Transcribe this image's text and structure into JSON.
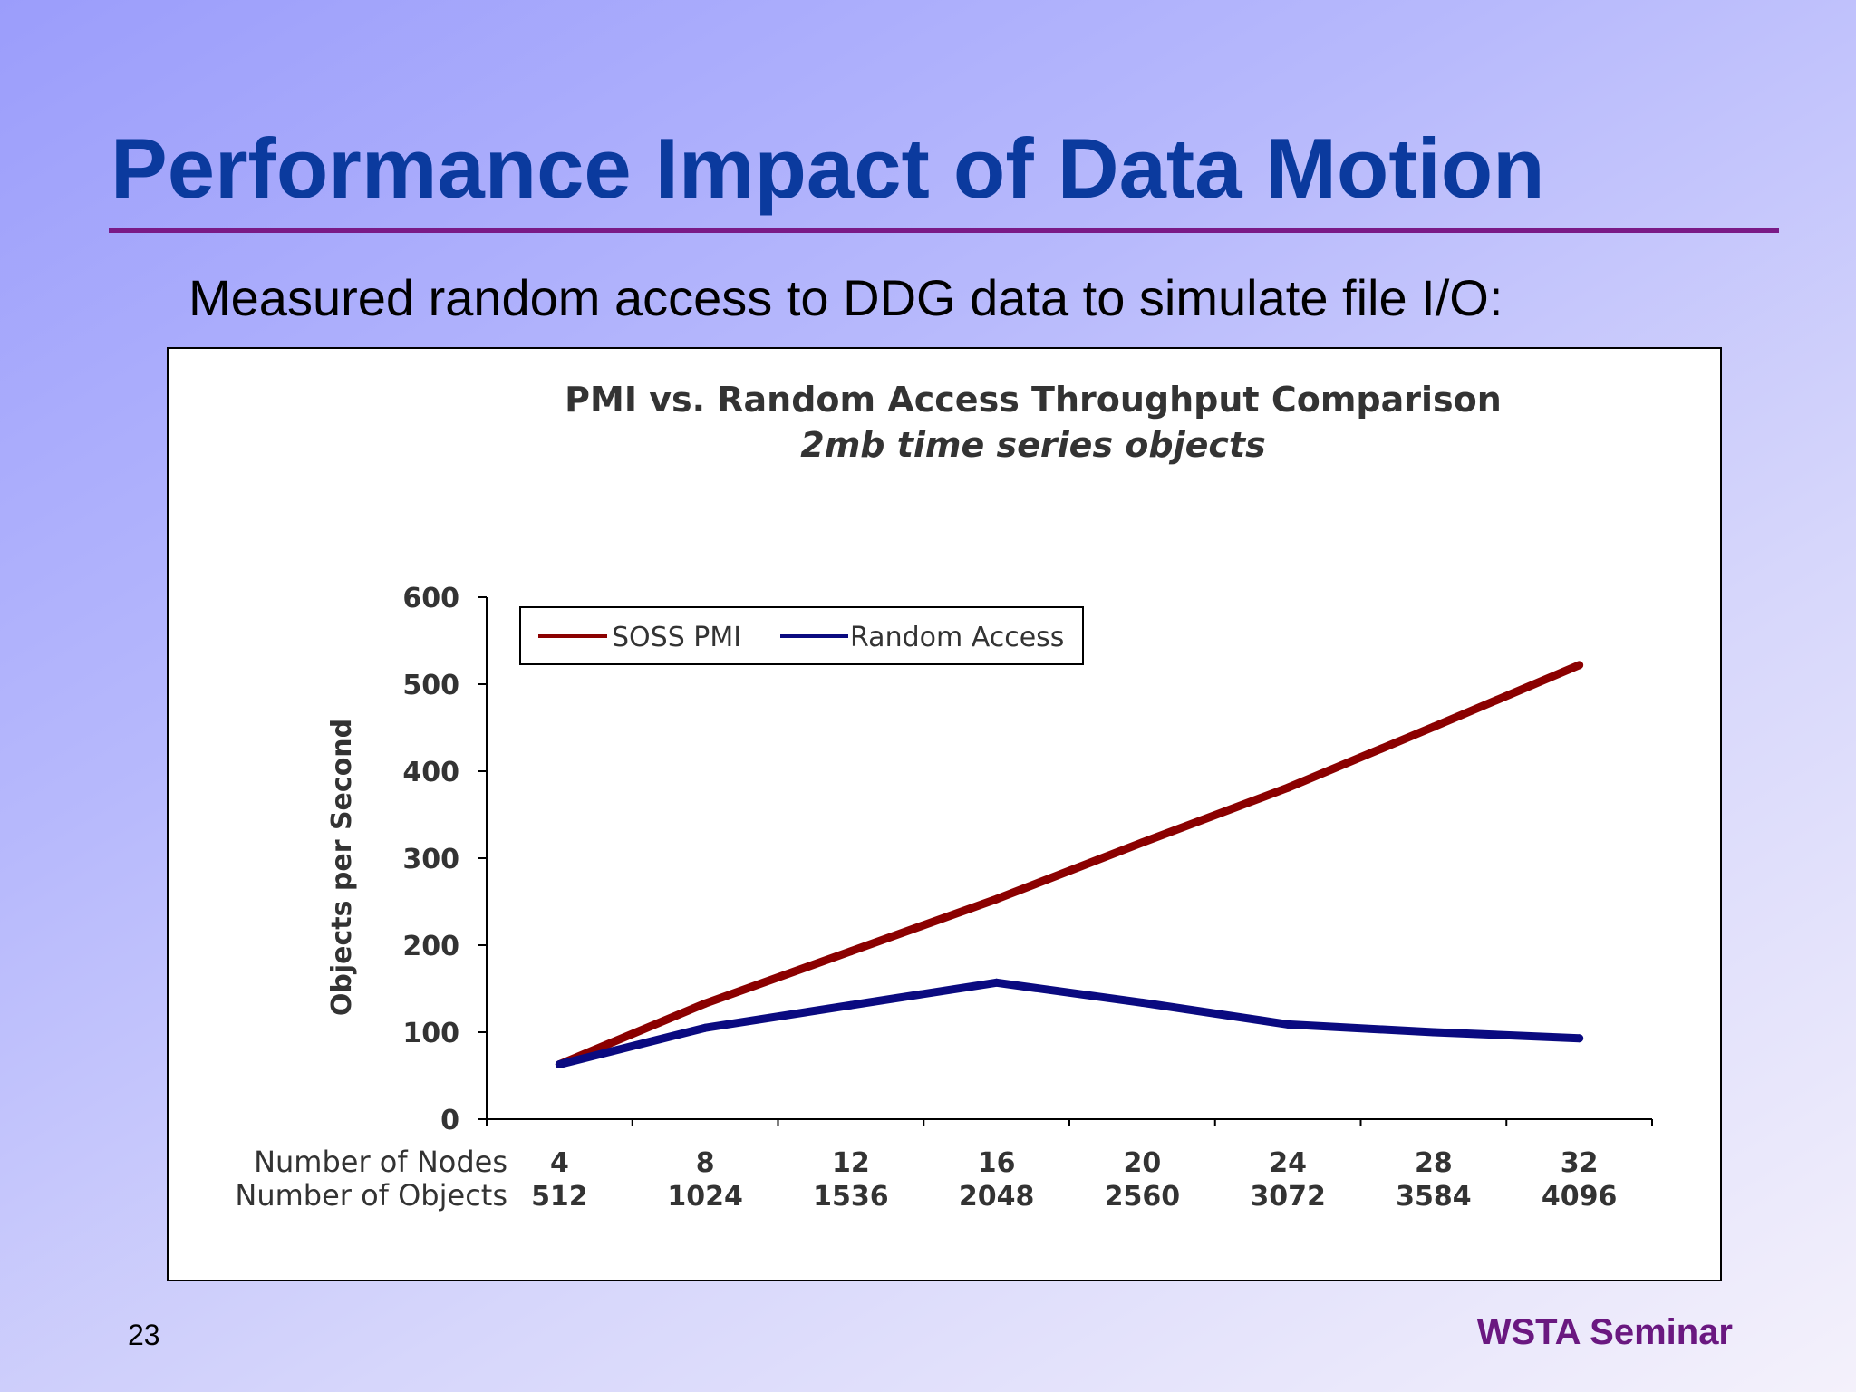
{
  "slide": {
    "title": "Performance Impact of Data Motion",
    "subtitle": "Measured random access to DDG data to simulate file I/O:",
    "number": "23",
    "footer": "WSTA Seminar"
  },
  "colors": {
    "title": "#0b3a9e",
    "rule": "#7a1a86",
    "footer": "#6a1880",
    "series_soss": "#8b0000",
    "series_random": "#0a0a80"
  },
  "chart_data": {
    "type": "line",
    "title": "PMI vs. Random Access Throughput Comparison",
    "subtitle": "2mb time series objects",
    "ylabel": "Objects per Second",
    "ylim": [
      0,
      600
    ],
    "yticks": [
      0,
      100,
      200,
      300,
      400,
      500,
      600
    ],
    "category_rows": [
      {
        "label": "Number of Nodes",
        "values": [
          "4",
          "8",
          "12",
          "16",
          "20",
          "24",
          "28",
          "32"
        ]
      },
      {
        "label": "Number of Objects",
        "values": [
          "512",
          "1024",
          "1536",
          "2048",
          "2560",
          "3072",
          "3584",
          "4096"
        ]
      }
    ],
    "legend_position": "top-left",
    "series": [
      {
        "name": "SOSS PMI",
        "color": "#8b0000",
        "values": [
          63,
          133,
          193,
          253,
          318,
          381,
          451,
          522
        ]
      },
      {
        "name": "Random Access",
        "color": "#0a0a80",
        "values": [
          63,
          105,
          131,
          157,
          134,
          109,
          100,
          93
        ]
      }
    ]
  }
}
